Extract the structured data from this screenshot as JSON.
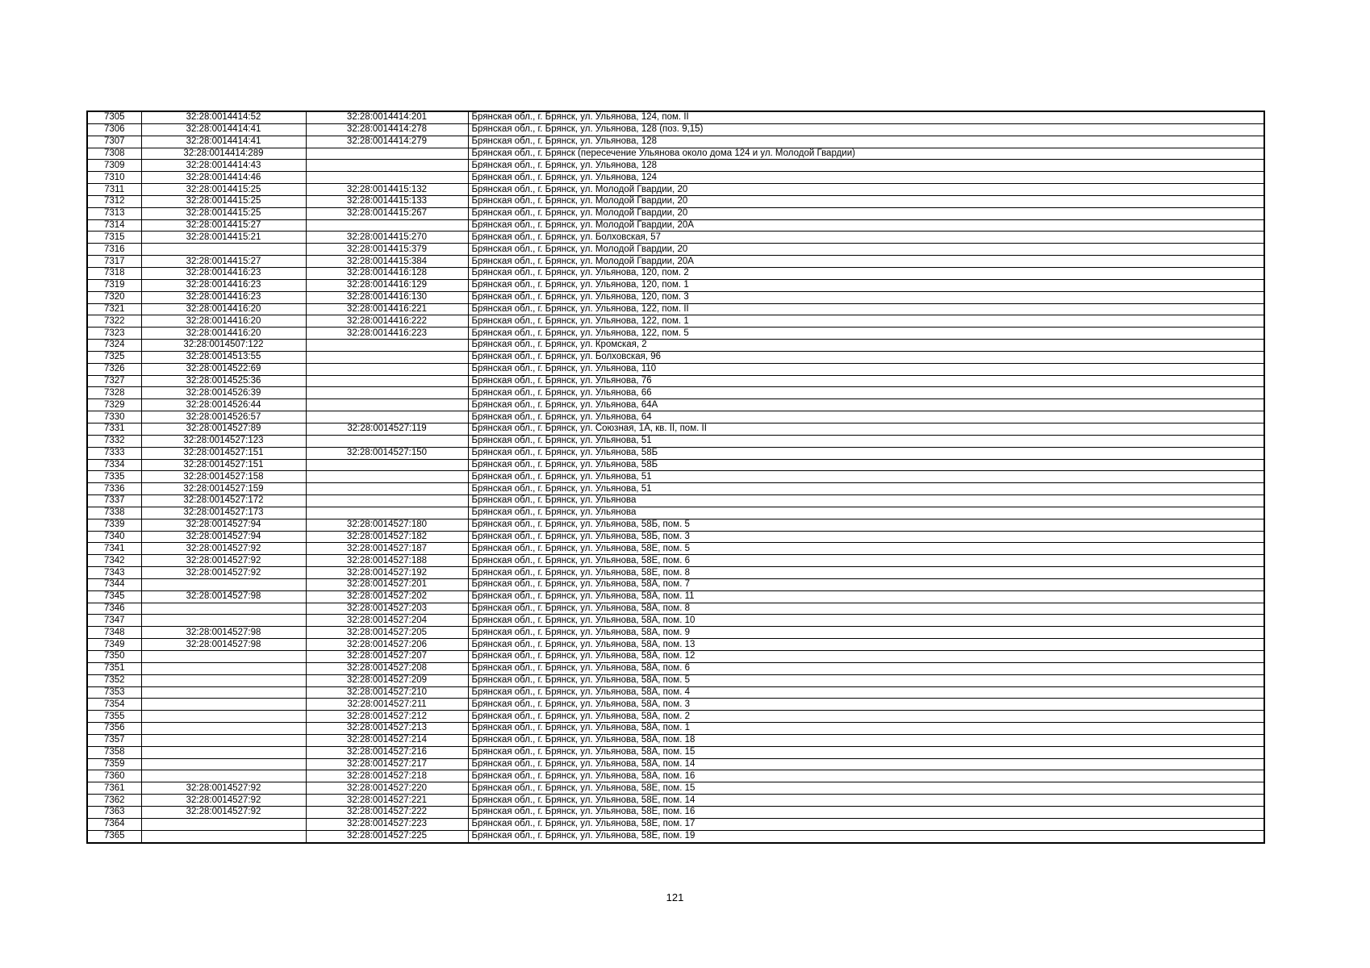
{
  "page": {
    "number": "121"
  },
  "table": {
    "columns": [
      "row_number",
      "cadastral_number_1",
      "cadastral_number_2",
      "address"
    ],
    "rows": [
      [
        "7305",
        "32:28:0014414:52",
        "32:28:0014414:201",
        "Брянская обл., г. Брянск, ул. Ульянова, 124, пом. II"
      ],
      [
        "7306",
        "32:28:0014414:41",
        "32:28:0014414:278",
        "Брянская обл., г. Брянск, ул. Ульянова, 128 (поз. 9,15)"
      ],
      [
        "7307",
        "32:28:0014414:41",
        "32:28:0014414:279",
        "Брянская обл., г. Брянск, ул. Ульянова, 128"
      ],
      [
        "7308",
        "32:28:0014414:289",
        "",
        "Брянская обл., г. Брянск (пересечение Ульянова около дома 124 и ул. Молодой Гвардии)"
      ],
      [
        "7309",
        "32:28:0014414:43",
        "",
        "Брянская обл., г. Брянск, ул. Ульянова, 128"
      ],
      [
        "7310",
        "32:28:0014414:46",
        "",
        "Брянская обл., г. Брянск, ул. Ульянова, 124"
      ],
      [
        "7311",
        "32:28:0014415:25",
        "32:28:0014415:132",
        "Брянская обл., г. Брянск, ул. Молодой Гвардии, 20"
      ],
      [
        "7312",
        "32:28:0014415:25",
        "32:28:0014415:133",
        "Брянская обл., г. Брянск, ул. Молодой Гвардии, 20"
      ],
      [
        "7313",
        "32:28:0014415:25",
        "32:28:0014415:267",
        "Брянская обл., г. Брянск, ул. Молодой Гвардии, 20"
      ],
      [
        "7314",
        "32:28:0014415:27",
        "",
        "Брянская обл., г. Брянск, ул. Молодой Гвардии, 20А"
      ],
      [
        "7315",
        "32:28:0014415:21",
        "32:28:0014415:270",
        "Брянская обл., г. Брянск, ул. Болховская, 57"
      ],
      [
        "7316",
        "",
        "32:28:0014415:379",
        "Брянская обл., г. Брянск, ул. Молодой Гвардии, 20"
      ],
      [
        "7317",
        "32:28:0014415:27",
        "32:28:0014415:384",
        "Брянская обл., г. Брянск, ул. Молодой Гвардии, 20А"
      ],
      [
        "7318",
        "32:28:0014416:23",
        "32:28:0014416:128",
        "Брянская обл., г. Брянск, ул. Ульянова, 120, пом. 2"
      ],
      [
        "7319",
        "32:28:0014416:23",
        "32:28:0014416:129",
        "Брянская обл., г. Брянск, ул. Ульянова, 120, пом. 1"
      ],
      [
        "7320",
        "32:28:0014416:23",
        "32:28:0014416:130",
        "Брянская обл., г. Брянск, ул. Ульянова, 120, пом. 3"
      ],
      [
        "7321",
        "32:28:0014416:20",
        "32:28:0014416:221",
        "Брянская обл., г. Брянск, ул. Ульянова, 122, пом. II"
      ],
      [
        "7322",
        "32:28:0014416:20",
        "32:28:0014416:222",
        "Брянская обл., г. Брянск, ул. Ульянова, 122, пом. 1"
      ],
      [
        "7323",
        "32:28:0014416:20",
        "32:28:0014416:223",
        "Брянская обл., г. Брянск, ул. Ульянова, 122, пом. 5"
      ],
      [
        "7324",
        "32:28:0014507:122",
        "",
        "Брянская обл., г. Брянск, ул. Кромская, 2"
      ],
      [
        "7325",
        "32:28:0014513:55",
        "",
        "Брянская обл., г. Брянск, ул. Болховская, 96"
      ],
      [
        "7326",
        "32:28:0014522:69",
        "",
        "Брянская обл., г. Брянск, ул. Ульянова, 110"
      ],
      [
        "7327",
        "32:28:0014525:36",
        "",
        "Брянская обл., г. Брянск, ул. Ульянова, 76"
      ],
      [
        "7328",
        "32:28:0014526:39",
        "",
        "Брянская обл., г. Брянск, ул. Ульянова, 66"
      ],
      [
        "7329",
        "32:28:0014526:44",
        "",
        "Брянская обл., г. Брянск, ул. Ульянова, 64А"
      ],
      [
        "7330",
        "32:28:0014526:57",
        "",
        "Брянская обл., г. Брянск, ул. Ульянова, 64"
      ],
      [
        "7331",
        "32:28:0014527:89",
        "32:28:0014527:119",
        "Брянская обл., г. Брянск, ул. Союзная, 1А, кв. II, пом. II"
      ],
      [
        "7332",
        "32:28:0014527:123",
        "",
        "Брянская обл., г. Брянск, ул. Ульянова, 51"
      ],
      [
        "7333",
        "32:28:0014527:151",
        "32:28:0014527:150",
        "Брянская обл., г. Брянск, ул. Ульянова, 58Б"
      ],
      [
        "7334",
        "32:28:0014527:151",
        "",
        "Брянская обл., г. Брянск, ул. Ульянова, 58Б"
      ],
      [
        "7335",
        "32:28:0014527:158",
        "",
        "Брянская обл., г. Брянск, ул. Ульянова, 51"
      ],
      [
        "7336",
        "32:28:0014527:159",
        "",
        "Брянская обл., г. Брянск, ул. Ульянова, 51"
      ],
      [
        "7337",
        "32:28:0014527:172",
        "",
        "Брянская обл., г. Брянск, ул. Ульянова"
      ],
      [
        "7338",
        "32:28:0014527:173",
        "",
        "Брянская обл., г. Брянск, ул. Ульянова"
      ],
      [
        "7339",
        "32:28:0014527:94",
        "32:28:0014527:180",
        "Брянская обл., г. Брянск, ул. Ульянова, 58Б, пом. 5"
      ],
      [
        "7340",
        "32:28:0014527:94",
        "32:28:0014527:182",
        "Брянская обл., г. Брянск, ул. Ульянова, 58Б, пом. 3"
      ],
      [
        "7341",
        "32:28:0014527:92",
        "32:28:0014527:187",
        "Брянская обл., г. Брянск, ул. Ульянова, 58Е, пом. 5"
      ],
      [
        "7342",
        "32:28:0014527:92",
        "32:28:0014527:188",
        "Брянская обл., г. Брянск, ул. Ульянова, 58Е, пом. 6"
      ],
      [
        "7343",
        "32:28:0014527:92",
        "32:28:0014527:192",
        "Брянская обл., г. Брянск, ул. Ульянова, 58Е, пом. 8"
      ],
      [
        "7344",
        "",
        "32:28:0014527:201",
        "Брянская обл., г. Брянск, ул. Ульянова, 58А, пом. 7"
      ],
      [
        "7345",
        "32:28:0014527:98",
        "32:28:0014527:202",
        "Брянская обл., г. Брянск, ул. Ульянова, 58А, пом. 11"
      ],
      [
        "7346",
        "",
        "32:28:0014527:203",
        "Брянская обл., г. Брянск, ул. Ульянова, 58А, пом. 8"
      ],
      [
        "7347",
        "",
        "32:28:0014527:204",
        "Брянская обл., г. Брянск, ул. Ульянова, 58А, пом. 10"
      ],
      [
        "7348",
        "32:28:0014527:98",
        "32:28:0014527:205",
        "Брянская обл., г. Брянск, ул. Ульянова, 58А, пом. 9"
      ],
      [
        "7349",
        "32:28:0014527:98",
        "32:28:0014527:206",
        "Брянская обл., г. Брянск, ул. Ульянова, 58А, пом. 13"
      ],
      [
        "7350",
        "",
        "32:28:0014527:207",
        "Брянская обл., г. Брянск, ул. Ульянова, 58А, пом. 12"
      ],
      [
        "7351",
        "",
        "32:28:0014527:208",
        "Брянская обл., г. Брянск, ул. Ульянова, 58А, пом. 6"
      ],
      [
        "7352",
        "",
        "32:28:0014527:209",
        "Брянская обл., г. Брянск, ул. Ульянова, 58А, пом. 5"
      ],
      [
        "7353",
        "",
        "32:28:0014527:210",
        "Брянская обл., г. Брянск, ул. Ульянова, 58А, пом. 4"
      ],
      [
        "7354",
        "",
        "32:28:0014527:211",
        "Брянская обл., г. Брянск, ул. Ульянова, 58А, пом. 3"
      ],
      [
        "7355",
        "",
        "32:28:0014527:212",
        "Брянская обл., г. Брянск, ул. Ульянова, 58А, пом. 2"
      ],
      [
        "7356",
        "",
        "32:28:0014527:213",
        "Брянская обл., г. Брянск, ул. Ульянова, 58А, пом. 1"
      ],
      [
        "7357",
        "",
        "32:28:0014527:214",
        "Брянская обл., г. Брянск, ул. Ульянова, 58А, пом. 18"
      ],
      [
        "7358",
        "",
        "32:28:0014527:216",
        "Брянская обл., г. Брянск, ул. Ульянова, 58А, пом. 15"
      ],
      [
        "7359",
        "",
        "32:28:0014527:217",
        "Брянская обл., г. Брянск, ул. Ульянова, 58А, пом. 14"
      ],
      [
        "7360",
        "",
        "32:28:0014527:218",
        "Брянская обл., г. Брянск, ул. Ульянова, 58А, пом. 16"
      ],
      [
        "7361",
        "32:28:0014527:92",
        "32:28:0014527:220",
        "Брянская обл., г. Брянск, ул. Ульянова, 58Е, пом. 15"
      ],
      [
        "7362",
        "32:28:0014527:92",
        "32:28:0014527:221",
        "Брянская обл., г. Брянск, ул. Ульянова, 58Е, пом. 14"
      ],
      [
        "7363",
        "32:28:0014527:92",
        "32:28:0014527:222",
        "Брянская обл., г. Брянск, ул. Ульянова, 58Е, пом. 16"
      ],
      [
        "7364",
        "",
        "32:28:0014527:223",
        "Брянская обл., г. Брянск, ул. Ульянова, 58Е, пом. 17"
      ],
      [
        "7365",
        "",
        "32:28:0014527:225",
        "Брянская обл., г. Брянск, ул. Ульянова, 58Е, пом. 19"
      ]
    ]
  }
}
